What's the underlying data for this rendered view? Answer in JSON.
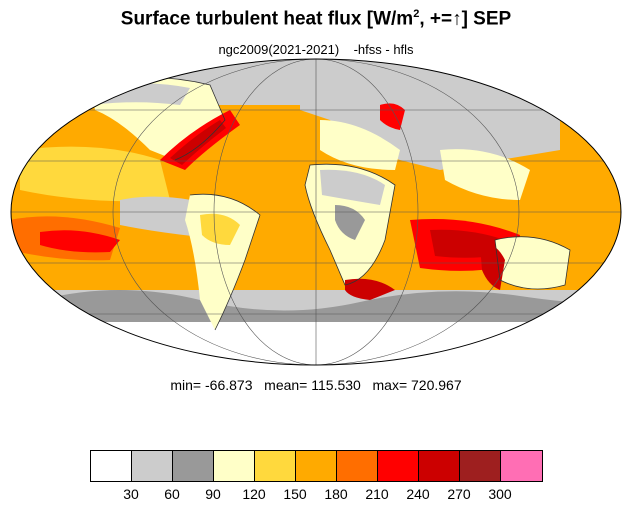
{
  "title": {
    "main": "Surface turbulent heat flux [W/m",
    "sup": "2",
    "tail": ", +=↑]  SEP"
  },
  "subtitle": "ngc2009(2021-2021)    -hfss - hfls",
  "stats": {
    "min_label": "min=",
    "min": "-66.873",
    "mean_label": "mean=",
    "mean": "115.530",
    "max_label": "max=",
    "max": "720.967"
  },
  "colorbar": {
    "colors": [
      "#ffffff",
      "#cccccc",
      "#999999",
      "#ffffc8",
      "#ffd93d",
      "#ffaa00",
      "#ff6e00",
      "#ff0000",
      "#cc0000",
      "#9e1f1f",
      "#ff6eb4"
    ],
    "labels": [
      "30",
      "60",
      "90",
      "120",
      "150",
      "180",
      "210",
      "240",
      "270",
      "300"
    ]
  },
  "map": {
    "projection": "Mollweide",
    "ocean_background": "#ffaa00",
    "land_color": "#ffffc8",
    "grid": true
  }
}
